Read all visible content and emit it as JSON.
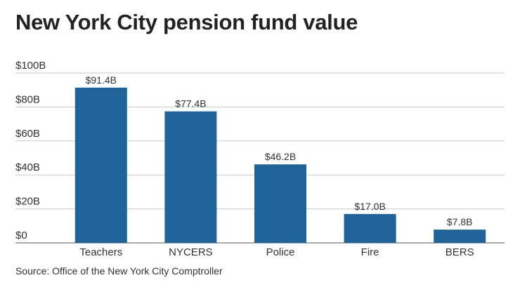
{
  "chart_data": {
    "type": "bar",
    "title": "New York City pension fund value",
    "xlabel": "",
    "ylabel": "",
    "categories": [
      "Teachers",
      "NYCERS",
      "Police",
      "Fire",
      "BERS"
    ],
    "values": [
      91.4,
      77.4,
      46.2,
      17.0,
      7.8
    ],
    "value_labels": [
      "$91.4B",
      "$77.4B",
      "$46.2B",
      "$17.0B",
      "$7.8B"
    ],
    "ylim": [
      0,
      100
    ],
    "y_ticks": [
      0,
      20,
      40,
      60,
      80,
      100
    ],
    "y_tick_labels": [
      "$0",
      "$20B",
      "$40B",
      "$60B",
      "$80B",
      "$100B"
    ],
    "grid": true,
    "bar_color": "#1f639b",
    "source": "Source: Office of the New York City Comptroller"
  }
}
